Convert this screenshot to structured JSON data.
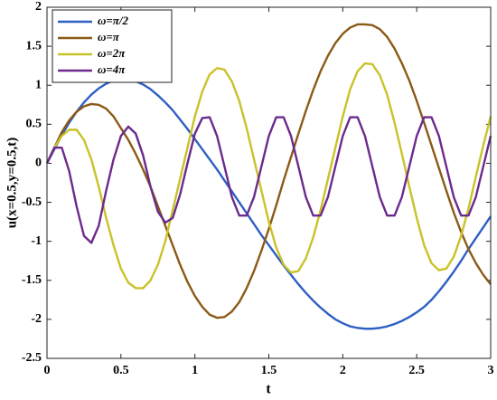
{
  "chart_data": {
    "type": "line",
    "x_label": "t",
    "y_label": "u(x=0.5,y=0.5,t)",
    "x": [
      0,
      0.05,
      0.1,
      0.15,
      0.2,
      0.25,
      0.3,
      0.35,
      0.4,
      0.45,
      0.5,
      0.55,
      0.6,
      0.65,
      0.7,
      0.75,
      0.8,
      0.85,
      0.9,
      0.95,
      1,
      1.05,
      1.1,
      1.15,
      1.2,
      1.25,
      1.3,
      1.35,
      1.4,
      1.45,
      1.5,
      1.55,
      1.6,
      1.65,
      1.7,
      1.75,
      1.8,
      1.85,
      1.9,
      1.95,
      2,
      2.05,
      2.1,
      2.15,
      2.2,
      2.25,
      2.3,
      2.35,
      2.4,
      2.45,
      2.5,
      2.55,
      2.6,
      2.65,
      2.7,
      2.75,
      2.8,
      2.85,
      2.9,
      2.95,
      3
    ],
    "series": [
      {
        "name": "ω=π/2",
        "color": "#2f5fc4",
        "values": [
          0,
          0.18,
          0.36,
          0.52,
          0.66,
          0.78,
          0.88,
          0.96,
          1.02,
          1.06,
          1.07,
          1.07,
          1.05,
          1.01,
          0.95,
          0.87,
          0.78,
          0.68,
          0.56,
          0.44,
          0.31,
          0.18,
          0.05,
          -0.08,
          -0.22,
          -0.36,
          -0.5,
          -0.64,
          -0.78,
          -0.92,
          -1.05,
          -1.18,
          -1.31,
          -1.43,
          -1.55,
          -1.66,
          -1.76,
          -1.85,
          -1.93,
          -2.0,
          -2.05,
          -2.09,
          -2.11,
          -2.12,
          -2.12,
          -2.11,
          -2.09,
          -2.06,
          -2.02,
          -1.97,
          -1.91,
          -1.84,
          -1.75,
          -1.64,
          -1.52,
          -1.39,
          -1.25,
          -1.1,
          -0.96,
          -0.82,
          -0.68
        ]
      },
      {
        "name": "ω=π",
        "color": "#8b5a16",
        "values": [
          0,
          0.2,
          0.4,
          0.55,
          0.66,
          0.73,
          0.76,
          0.75,
          0.7,
          0.6,
          0.45,
          0.3,
          0.12,
          -0.08,
          -0.3,
          -0.55,
          -0.8,
          -1.05,
          -1.3,
          -1.52,
          -1.7,
          -1.84,
          -1.94,
          -1.98,
          -1.97,
          -1.9,
          -1.78,
          -1.6,
          -1.38,
          -1.12,
          -0.84,
          -0.54,
          -0.22,
          0.08,
          0.38,
          0.67,
          0.94,
          1.18,
          1.38,
          1.54,
          1.66,
          1.74,
          1.78,
          1.78,
          1.77,
          1.72,
          1.62,
          1.47,
          1.28,
          1.06,
          0.8,
          0.52,
          0.23,
          -0.06,
          -0.35,
          -0.63,
          -0.88,
          -1.1,
          -1.28,
          -1.43,
          -1.55
        ]
      },
      {
        "name": "ω=2π",
        "color": "#c9c228",
        "values": [
          0,
          0.2,
          0.35,
          0.43,
          0.43,
          0.3,
          0.05,
          -0.3,
          -0.7,
          -1.05,
          -1.35,
          -1.53,
          -1.6,
          -1.6,
          -1.5,
          -1.3,
          -1.0,
          -0.6,
          -0.2,
          0.2,
          0.6,
          0.92,
          1.14,
          1.22,
          1.2,
          1.05,
          0.8,
          0.45,
          0.05,
          -0.35,
          -0.75,
          -1.08,
          -1.3,
          -1.4,
          -1.38,
          -1.22,
          -0.95,
          -0.6,
          -0.2,
          0.2,
          0.6,
          0.95,
          1.18,
          1.28,
          1.27,
          1.13,
          0.88,
          0.52,
          0.12,
          -0.3,
          -0.7,
          -1.05,
          -1.28,
          -1.37,
          -1.35,
          -1.2,
          -0.93,
          -0.58,
          -0.17,
          0.23,
          0.6
        ]
      },
      {
        "name": "ω=4π",
        "color": "#6b2a8c",
        "values": [
          0,
          0.2,
          0.2,
          -0.1,
          -0.55,
          -0.93,
          -1.02,
          -0.8,
          -0.35,
          0.05,
          0.35,
          0.47,
          0.38,
          0.1,
          -0.3,
          -0.62,
          -0.76,
          -0.7,
          -0.4,
          0.0,
          0.38,
          0.58,
          0.59,
          0.35,
          -0.04,
          -0.43,
          -0.67,
          -0.67,
          -0.43,
          -0.04,
          0.35,
          0.59,
          0.59,
          0.35,
          -0.04,
          -0.43,
          -0.67,
          -0.67,
          -0.43,
          -0.04,
          0.35,
          0.59,
          0.59,
          0.35,
          -0.04,
          -0.43,
          -0.67,
          -0.67,
          -0.43,
          -0.04,
          0.35,
          0.59,
          0.59,
          0.35,
          -0.04,
          -0.43,
          -0.67,
          -0.67,
          -0.43,
          -0.04,
          0.35
        ]
      }
    ],
    "xlim": [
      0,
      3
    ],
    "xticks": [
      0,
      0.5,
      1,
      1.5,
      2,
      2.5,
      3
    ],
    "ylim": [
      -2.5,
      2
    ],
    "yticks": [
      -2.5,
      -2,
      -1.5,
      -1,
      -0.5,
      0,
      0.5,
      1,
      1.5,
      2
    ],
    "grid": false,
    "legend": "upper left"
  }
}
